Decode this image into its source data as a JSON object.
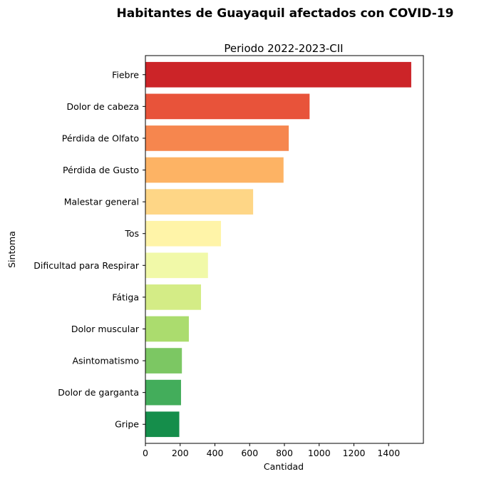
{
  "chart_data": {
    "type": "bar",
    "orientation": "horizontal",
    "suptitle": "Habitantes de Guayaquil afectados con COVID-19",
    "title": "Periodo 2022-2023-CII",
    "xlabel": "Cantidad",
    "ylabel": "Sintoma",
    "xlim": [
      0,
      1600
    ],
    "xticks": [
      0,
      200,
      400,
      600,
      800,
      1000,
      1200,
      1400
    ],
    "grid": false,
    "categories": [
      "Fiebre",
      "Dolor de cabeza",
      "Pérdida de Olfato",
      "Pérdida de Gusto",
      "Malestar general",
      "Tos",
      "Dificultad para Respirar",
      "Fátiga",
      "Dolor muscular",
      "Asintomatismo",
      "Dolor de garganta",
      "Gripe"
    ],
    "values": [
      1530,
      945,
      825,
      795,
      620,
      435,
      360,
      320,
      250,
      210,
      205,
      195
    ],
    "colors": [
      "#cc2428",
      "#e8533a",
      "#f6864e",
      "#fdb364",
      "#fed686",
      "#fff4a8",
      "#f1f9a8",
      "#d4ec86",
      "#abdc6e",
      "#7cc763",
      "#43ad5b",
      "#158e4b"
    ]
  }
}
